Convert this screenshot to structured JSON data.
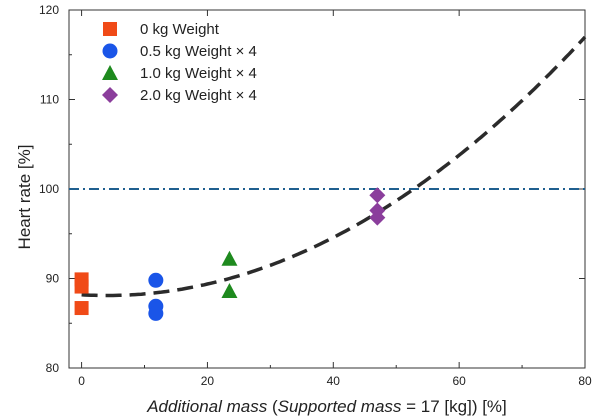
{
  "chart_data": {
    "type": "scatter",
    "xlabel_parts": [
      "Additional mass",
      " (",
      "Supported mass",
      " = 17 [kg]) [%]"
    ],
    "ylabel": "Heart rate [%]",
    "xlim": [
      -2,
      80
    ],
    "ylim": [
      80,
      120
    ],
    "xticks": [
      0,
      20,
      40,
      60,
      80
    ],
    "yticks": [
      80,
      90,
      100,
      110,
      120
    ],
    "grid": false,
    "legend_position": "top-left",
    "series": [
      {
        "name": "0 kg Weight",
        "marker": "square",
        "color": "#f04a17",
        "points": [
          [
            0,
            89.9
          ],
          [
            0,
            89.1
          ],
          [
            0,
            86.7
          ]
        ]
      },
      {
        "name": "0.5 kg Weight × 4",
        "marker": "circle",
        "color": "#1a55e8",
        "points": [
          [
            11.8,
            89.8
          ],
          [
            11.8,
            86.9
          ],
          [
            11.8,
            86.1
          ]
        ]
      },
      {
        "name": "1.0 kg Weight × 4",
        "marker": "triangle",
        "color": "#1e8a1e",
        "points": [
          [
            23.5,
            92.2
          ],
          [
            23.5,
            88.6
          ]
        ]
      },
      {
        "name": "2.0 kg Weight × 4",
        "marker": "diamond",
        "color": "#8b3e9c",
        "points": [
          [
            47,
            99.3
          ],
          [
            47,
            97.6
          ],
          [
            47,
            96.8
          ]
        ]
      }
    ],
    "reference_line": {
      "y": 100,
      "color": "#1f5f8f",
      "style": "dash-dot"
    },
    "fit_curve": {
      "type": "quadratic",
      "color": "#2b2b2b",
      "style": "dashed",
      "a": 0.005,
      "vertex_x": 4,
      "vertex_y": 88.1
    }
  }
}
